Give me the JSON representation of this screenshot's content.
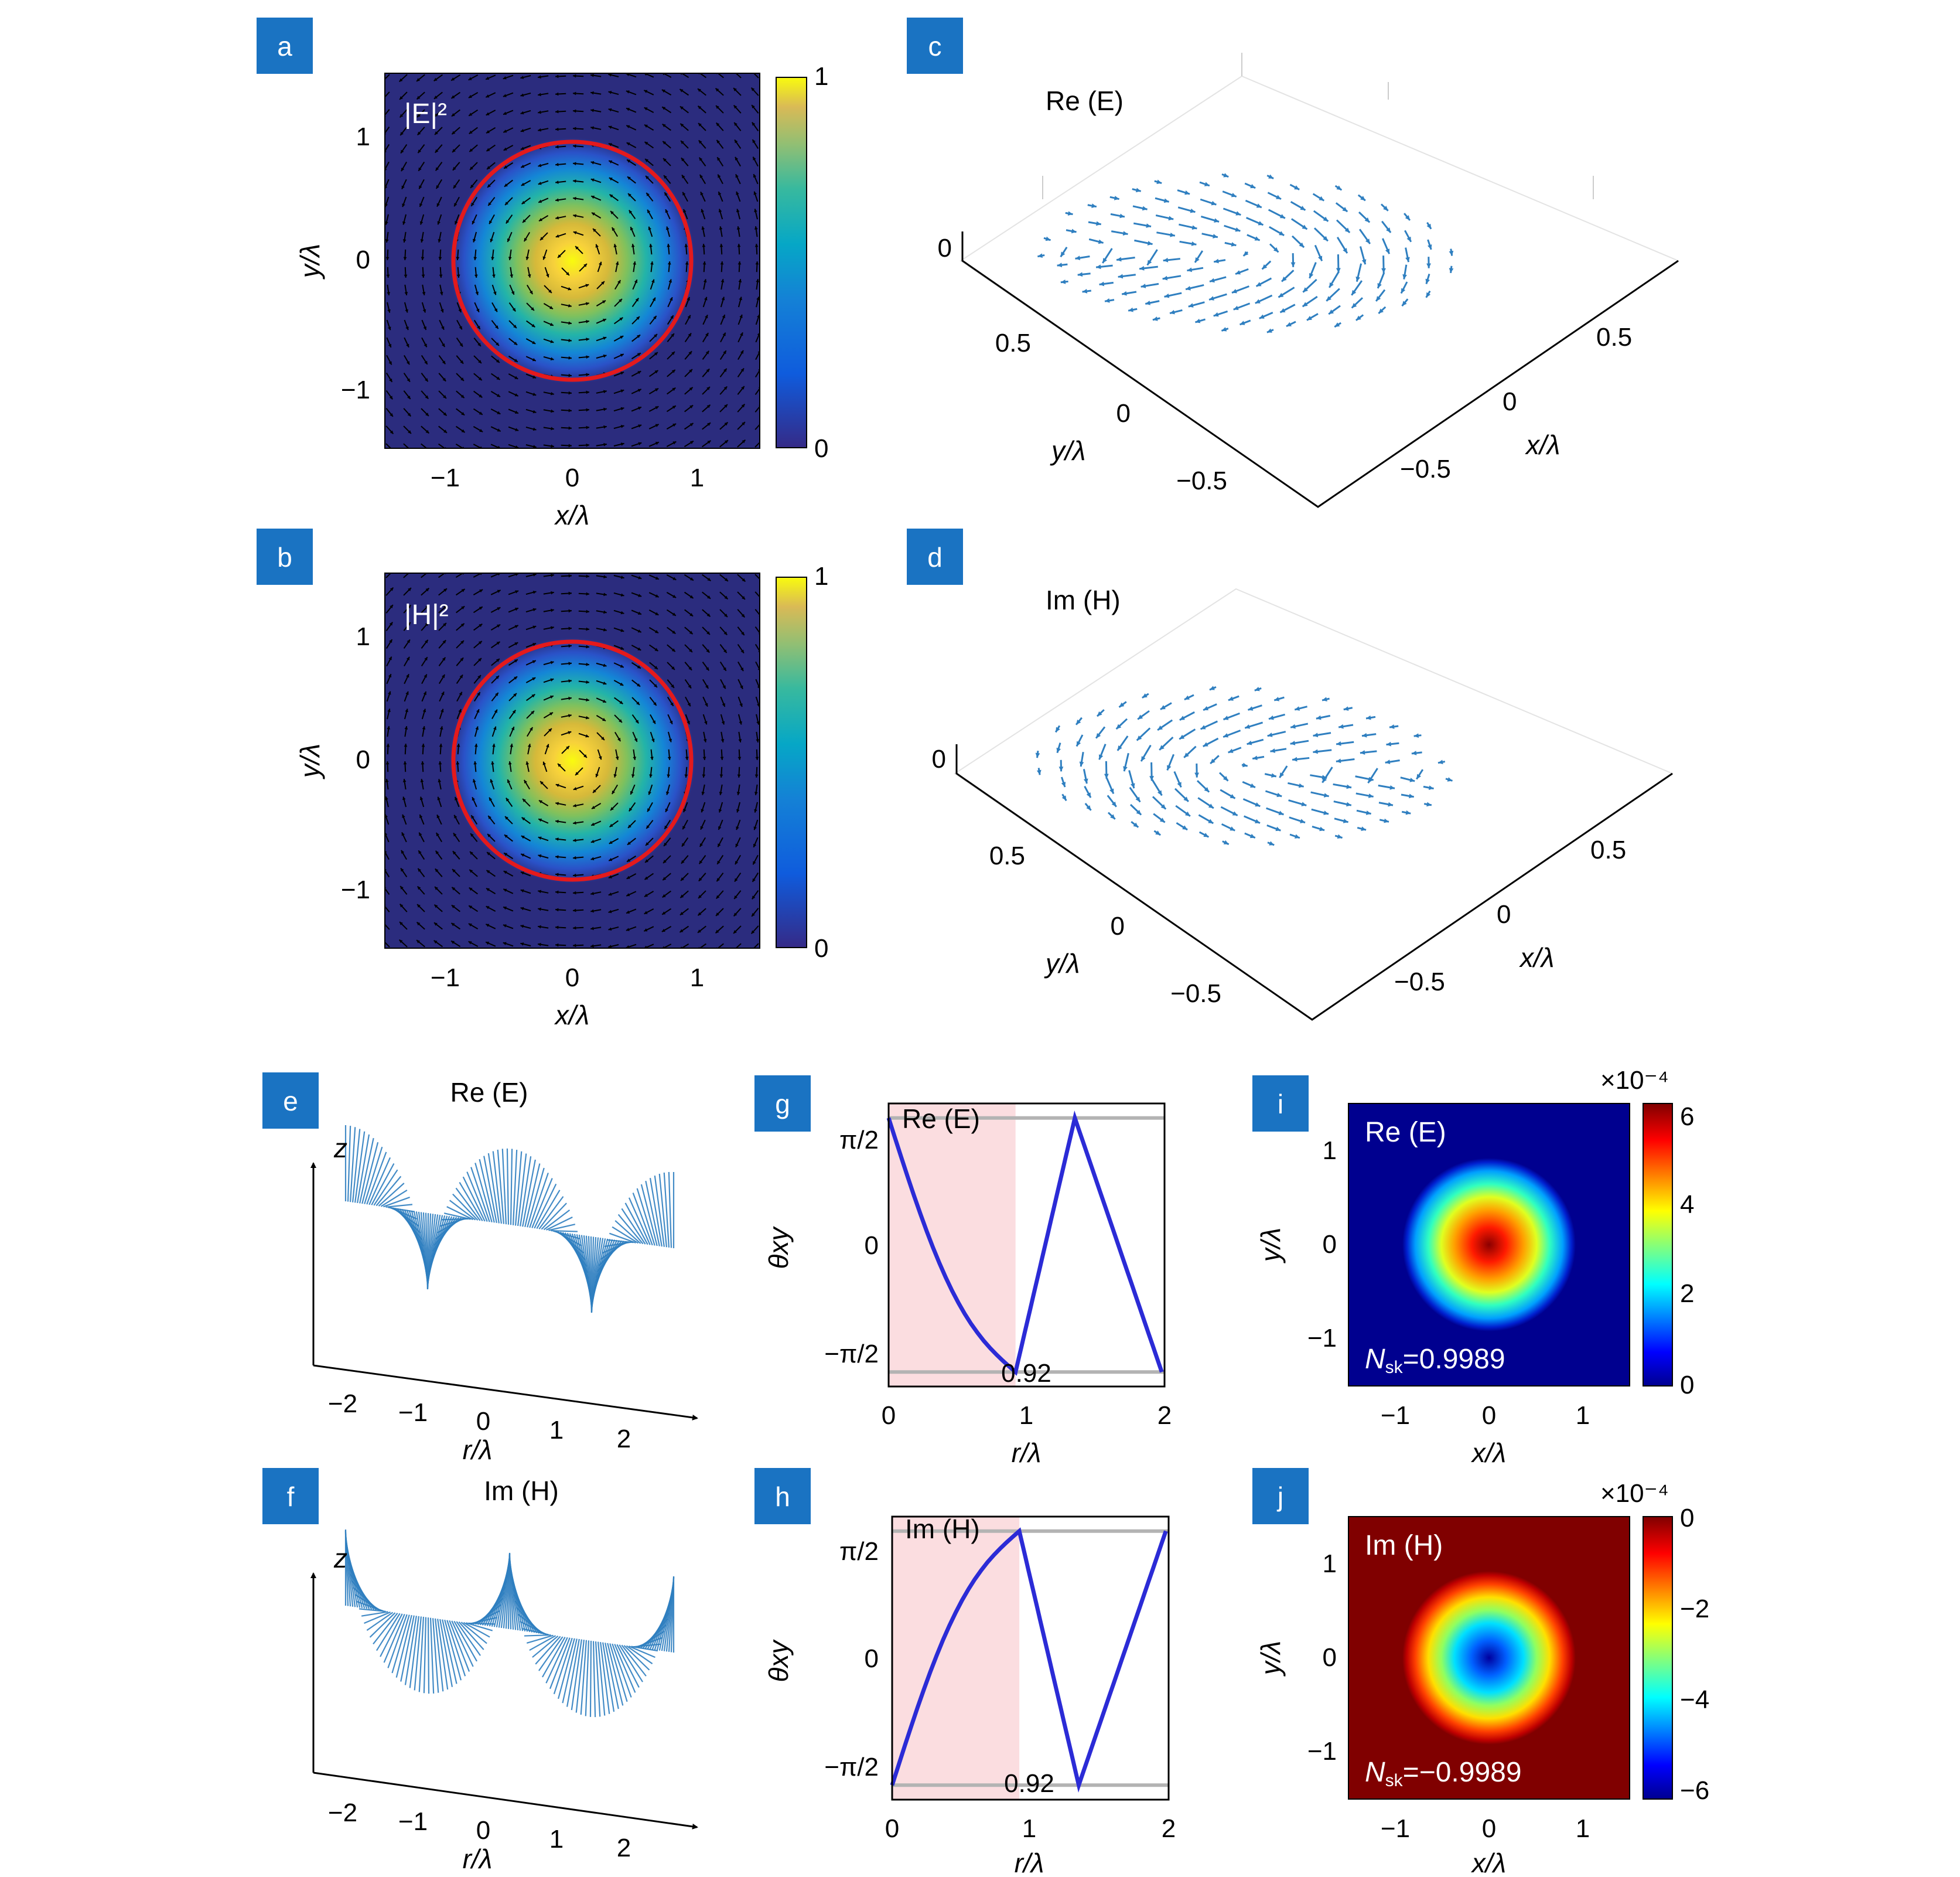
{
  "panels": {
    "a": {
      "badge": "a",
      "title": "|E|²",
      "colorbar_ticks": [
        "1",
        "0"
      ],
      "xticks": [
        "−1",
        "0",
        "1"
      ],
      "yticks": [
        "1",
        "0",
        "−1"
      ],
      "xlabel": "x/λ",
      "ylabel": "y/λ"
    },
    "b": {
      "badge": "b",
      "title": "|H|²",
      "colorbar_ticks": [
        "1",
        "0"
      ],
      "xticks": [
        "−1",
        "0",
        "1"
      ],
      "yticks": [
        "1",
        "0",
        "−1"
      ],
      "xlabel": "x/λ",
      "ylabel": "y/λ"
    },
    "c": {
      "badge": "c",
      "title": "Re (E)",
      "zlabel": "0",
      "yticks": [
        "0.5",
        "0",
        "−0.5"
      ],
      "xticks": [
        "0.5",
        "0",
        "−0.5"
      ],
      "xlabel": "x/λ",
      "ylabel": "y/λ"
    },
    "d": {
      "badge": "d",
      "title": "Im (H)",
      "zlabel": "0",
      "yticks": [
        "0.5",
        "0",
        "−0.5"
      ],
      "xticks": [
        "0.5",
        "0",
        "−0.5"
      ],
      "xlabel": "x/λ",
      "ylabel": "y/λ"
    },
    "e": {
      "badge": "e",
      "title": "Re (E)",
      "zaxis": "z",
      "xticks": [
        "−2",
        "−1",
        "0",
        "1",
        "2"
      ],
      "xlabel": "r/λ"
    },
    "f": {
      "badge": "f",
      "title": "Im (H)",
      "zaxis": "z",
      "xticks": [
        "−2",
        "−1",
        "0",
        "1",
        "2"
      ],
      "xlabel": "r/λ"
    },
    "g": {
      "badge": "g",
      "title": "Re (E)",
      "yticks": [
        "π/2",
        "0",
        "−π/2"
      ],
      "xticks": [
        "0",
        "1",
        "2"
      ],
      "xlabel": "r/λ",
      "ylabel": "θxy",
      "marker": "0.92"
    },
    "h": {
      "badge": "h",
      "title": "Im (H)",
      "yticks": [
        "π/2",
        "0",
        "−π/2"
      ],
      "xticks": [
        "0",
        "1",
        "2"
      ],
      "xlabel": "r/λ",
      "ylabel": "θxy",
      "marker": "0.92"
    },
    "i": {
      "badge": "i",
      "title": "Re (E)",
      "nsk_label": "N",
      "nsk_sub": "sk",
      "nsk_value": "=0.9989",
      "colorbar_ticks": [
        "6",
        "4",
        "2",
        "0"
      ],
      "exponent": "×10⁻⁴",
      "xticks": [
        "−1",
        "0",
        "1"
      ],
      "yticks": [
        "1",
        "0",
        "−1"
      ],
      "xlabel": "x/λ",
      "ylabel": "y/λ"
    },
    "j": {
      "badge": "j",
      "title": "Im (H)",
      "nsk_label": "N",
      "nsk_sub": "sk",
      "nsk_value": "=−0.9989",
      "colorbar_ticks": [
        "0",
        "−2",
        "−4",
        "−6"
      ],
      "exponent": "×10⁻⁴",
      "xticks": [
        "−1",
        "0",
        "1"
      ],
      "yticks": [
        "1",
        "0",
        "−1"
      ],
      "xlabel": "x/λ",
      "ylabel": "y/λ"
    }
  },
  "colors": {
    "badge": "#1a73c2",
    "arrow_blue": "#2f7fc0",
    "curve_blue": "#2b2bd6",
    "shade_pink": "#fbdde0",
    "circle_red": "#e41a1c",
    "field_bg": "#2b2c7e"
  },
  "chart_data": [
    {
      "type": "heatmap",
      "panel": "g",
      "title": "Re (E)",
      "xlabel": "r/λ",
      "ylabel": "θxy",
      "xlim": [
        0,
        2
      ],
      "ylim": [
        -1.5708,
        1.5708
      ],
      "series": [
        {
          "name": "",
          "x": [
            0,
            0.92,
            1.35,
            1.98
          ],
          "y": [
            1.5708,
            -1.5708,
            1.5708,
            -1.5708
          ]
        }
      ],
      "shaded_region": [
        0,
        0.92
      ]
    },
    {
      "type": "line",
      "panel": "h",
      "title": "Im (H)",
      "xlabel": "r/λ",
      "ylabel": "θxy",
      "xlim": [
        0,
        2
      ],
      "ylim": [
        -1.5708,
        1.5708
      ],
      "series": [
        {
          "name": "",
          "x": [
            0,
            0.92,
            1.35,
            1.98
          ],
          "y": [
            -1.5708,
            1.5708,
            -1.5708,
            1.5708
          ]
        }
      ],
      "shaded_region": [
        0,
        0.92
      ]
    },
    {
      "type": "heatmap",
      "panel": "i",
      "title": "Re (E)",
      "xlim": [
        -1.5,
        1.5
      ],
      "ylim": [
        -1.5,
        1.5
      ],
      "colorbar_range": [
        0,
        6.3
      ],
      "peak": 6.3,
      "ring_radius": 0.92
    },
    {
      "type": "heatmap",
      "panel": "j",
      "title": "Im (H)",
      "xlim": [
        -1.5,
        1.5
      ],
      "ylim": [
        -1.5,
        1.5
      ],
      "colorbar_range": [
        -6.3,
        0
      ],
      "peak": -6.3,
      "ring_radius": 0.92
    },
    {
      "type": "heatmap",
      "panel": "a",
      "title": "|E|²",
      "xlim": [
        -1.5,
        1.5
      ],
      "ylim": [
        -1.5,
        1.5
      ],
      "colorbar_range": [
        0,
        1
      ],
      "circle_radius": 0.92
    },
    {
      "type": "heatmap",
      "panel": "b",
      "title": "|H|²",
      "xlim": [
        -1.5,
        1.5
      ],
      "ylim": [
        -1.5,
        1.5
      ],
      "colorbar_range": [
        0,
        1
      ],
      "circle_radius": 0.92
    }
  ]
}
